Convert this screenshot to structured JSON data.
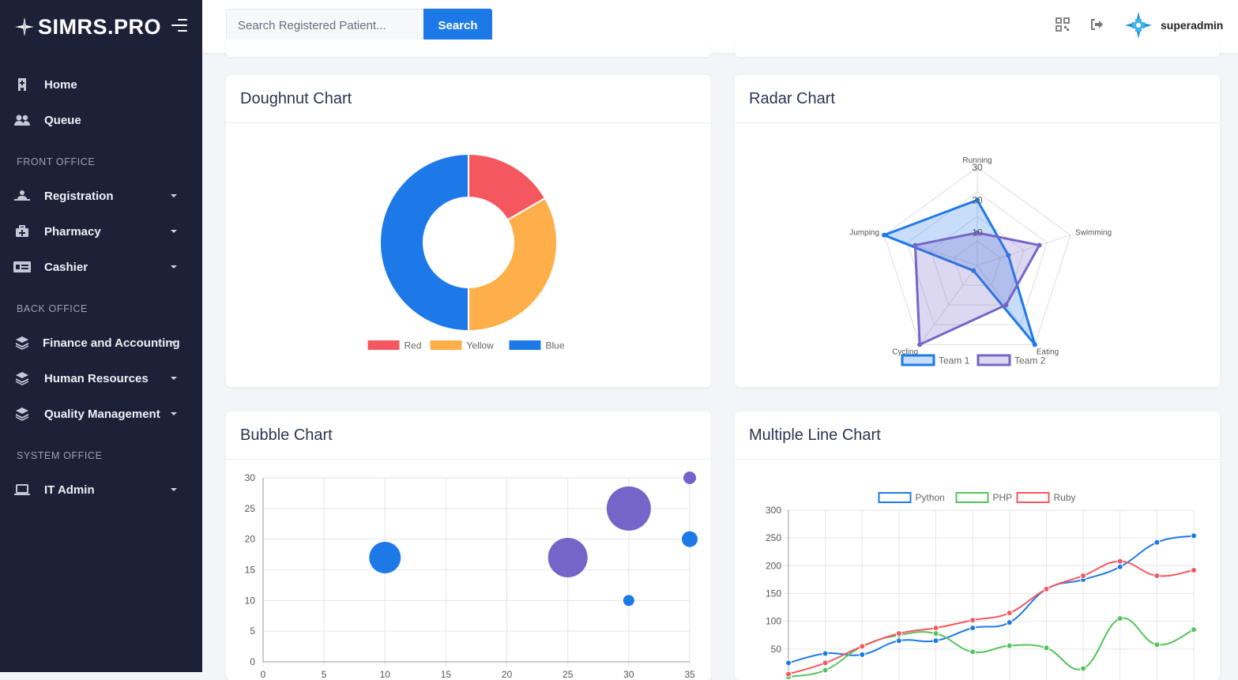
{
  "app": {
    "brand": "SIMRS.PRO",
    "colors": {
      "sidebar": "#1c2138",
      "accent": "#1e79e8",
      "red": "#f5575f",
      "yellow": "#feaf49",
      "blue": "#1e79e8",
      "purple": "#7565c8",
      "green": "#55c45c"
    }
  },
  "sidebar": {
    "items": [
      {
        "label": "Home",
        "icon": "hospital-icon"
      },
      {
        "label": "Queue",
        "icon": "users-icon"
      }
    ],
    "front_office": {
      "title": "FRONT OFFICE",
      "items": [
        {
          "label": "Registration",
          "icon": "patient-bed-icon"
        },
        {
          "label": "Pharmacy",
          "icon": "medkit-icon"
        },
        {
          "label": "Cashier",
          "icon": "money-card-icon"
        }
      ]
    },
    "back_office": {
      "title": "BACK OFFICE",
      "items": [
        {
          "label": "Finance and Accounting",
          "icon": "layers-icon"
        },
        {
          "label": "Human Resources",
          "icon": "layers-icon"
        },
        {
          "label": "Quality Management",
          "icon": "layers-icon"
        }
      ]
    },
    "system_office": {
      "title": "SYSTEM OFFICE",
      "items": [
        {
          "label": "IT Admin",
          "icon": "laptop-icon"
        }
      ]
    }
  },
  "topbar": {
    "search_placeholder": "Search Registered Patient...",
    "search_button": "Search",
    "icons": [
      "qrcode-icon",
      "sign-out-icon"
    ],
    "username": "superadmin"
  },
  "cards": {
    "doughnut": {
      "title": "Doughnut Chart"
    },
    "radar": {
      "title": "Radar Chart"
    },
    "bubble": {
      "title": "Bubble Chart"
    },
    "line": {
      "title": "Multiple Line Chart"
    }
  },
  "chart_data": [
    {
      "type": "pie",
      "variant": "doughnut",
      "categories": [
        "Red",
        "Yellow",
        "Blue"
      ],
      "values": [
        50,
        100,
        150
      ],
      "colors": [
        "#f5575f",
        "#feaf49",
        "#1e79e8"
      ],
      "legend": "bottom"
    },
    {
      "type": "radar",
      "categories": [
        "Running",
        "Swimming",
        "Eating",
        "Cycling",
        "Jumping"
      ],
      "rticks": [
        10,
        20,
        30
      ],
      "rlim": [
        0,
        30
      ],
      "series": [
        {
          "name": "Team 1",
          "values": [
            20,
            10,
            30,
            2,
            30
          ],
          "color": "#1e79e8"
        },
        {
          "name": "Team 2",
          "values": [
            10,
            20,
            15,
            30,
            20
          ],
          "color": "#7565c8"
        }
      ],
      "legend": "bottom"
    },
    {
      "type": "scatter",
      "variant": "bubble",
      "xticks": [
        0,
        5,
        10,
        15,
        20,
        25,
        30,
        35
      ],
      "yticks": [
        0,
        5,
        10,
        15,
        20,
        25,
        30
      ],
      "xlim": [
        0,
        35
      ],
      "ylim": [
        0,
        30
      ],
      "grid": true,
      "points": [
        {
          "x": 10,
          "y": 17,
          "r": 20,
          "color": "#1e79e8"
        },
        {
          "x": 25,
          "y": 17,
          "r": 25,
          "color": "#7565c8"
        },
        {
          "x": 30,
          "y": 25,
          "r": 28,
          "color": "#7565c8"
        },
        {
          "x": 30,
          "y": 10,
          "r": 7,
          "color": "#1e79e8"
        },
        {
          "x": 35,
          "y": 30,
          "r": 8,
          "color": "#7565c8"
        },
        {
          "x": 35,
          "y": 20,
          "r": 10,
          "color": "#1e79e8"
        }
      ]
    },
    {
      "type": "line",
      "yticks": [
        50,
        100,
        150,
        200,
        250,
        300
      ],
      "ylim": [
        0,
        300
      ],
      "x_count": 12,
      "grid": true,
      "legend": "top",
      "series": [
        {
          "name": "Python",
          "color": "#1e79e8",
          "values": [
            25,
            42,
            40,
            65,
            65,
            88,
            98,
            158,
            175,
            198,
            242,
            254
          ]
        },
        {
          "name": "PHP",
          "color": "#55c45c",
          "values": [
            0,
            12,
            55,
            75,
            78,
            45,
            56,
            52,
            15,
            105,
            58,
            85
          ]
        },
        {
          "name": "Ruby",
          "color": "#f5575f",
          "values": [
            5,
            25,
            55,
            78,
            88,
            102,
            115,
            158,
            182,
            208,
            182,
            192
          ]
        }
      ]
    }
  ]
}
